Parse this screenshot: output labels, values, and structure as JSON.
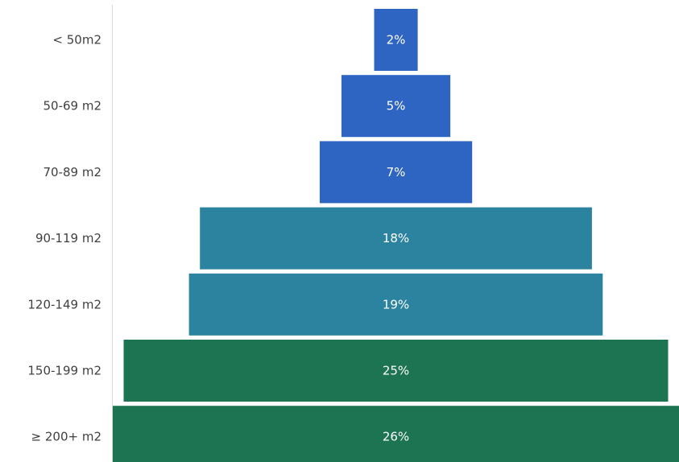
{
  "chart_data": {
    "type": "bar",
    "orientation": "horizontal-centered",
    "categories": [
      "< 50m2",
      "50-69 m2",
      "70-89 m2",
      "90-119 m2",
      "120-149 m2",
      "150-199 m2",
      "≥ 200+ m2"
    ],
    "values": [
      2,
      5,
      7,
      18,
      19,
      25,
      26
    ],
    "value_labels": [
      "2%",
      "5%",
      "7%",
      "18%",
      "19%",
      "25%",
      "26%"
    ],
    "colors": [
      "#2e65c2",
      "#2e65c2",
      "#2e65c2",
      "#2b83a0",
      "#2b83a0",
      "#1d7452",
      "#1d7452"
    ],
    "title": "",
    "xlabel": "",
    "ylabel": "",
    "xlim": [
      0,
      26
    ],
    "grid": false,
    "legend": "none"
  }
}
